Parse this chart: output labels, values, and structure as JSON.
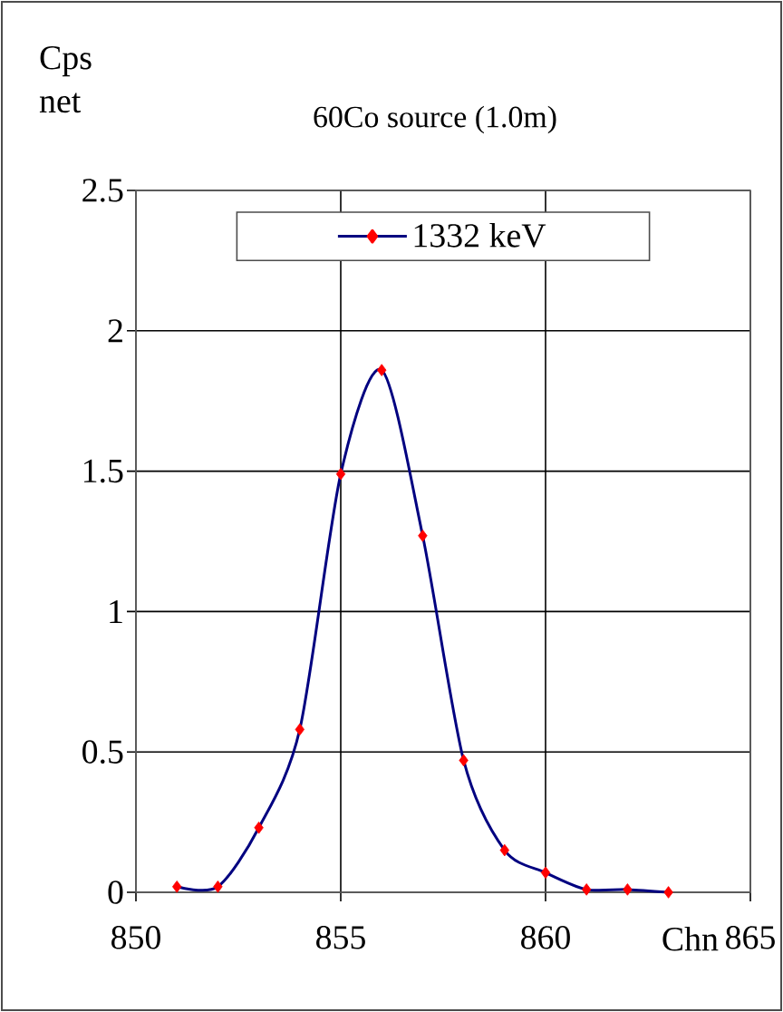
{
  "chart_data": {
    "type": "line",
    "title": "60Co source (1.0m)",
    "ylabel": "Cps net",
    "xlabel": "Chn",
    "x": [
      851,
      852,
      853,
      854,
      855,
      856,
      857,
      858,
      859,
      860,
      861,
      862,
      863
    ],
    "series": [
      {
        "name": "1332 keV",
        "color": "#000080",
        "colors": [
          "#ff0000",
          "#ff0000",
          "#ff0000",
          "#ff0000",
          "#ff0000",
          "#ff0000",
          "#ff0000",
          "#ff0000",
          "#ff0000",
          "#ff0000",
          "#ff0000",
          "#ff0000",
          "#ff0000"
        ],
        "values": [
          0.02,
          0.02,
          0.23,
          0.58,
          1.49,
          1.86,
          1.27,
          0.47,
          0.15,
          0.07,
          0.01,
          0.01,
          0.0
        ]
      }
    ],
    "xlim": [
      850,
      865
    ],
    "xticks": [
      850,
      855,
      860,
      865
    ],
    "ylim": [
      0,
      2.5
    ],
    "yticks": [
      0,
      0.5,
      1,
      1.5,
      2,
      2.5
    ],
    "grid": true,
    "legend": "top",
    "marker": "diamond",
    "line_style": "solid"
  }
}
